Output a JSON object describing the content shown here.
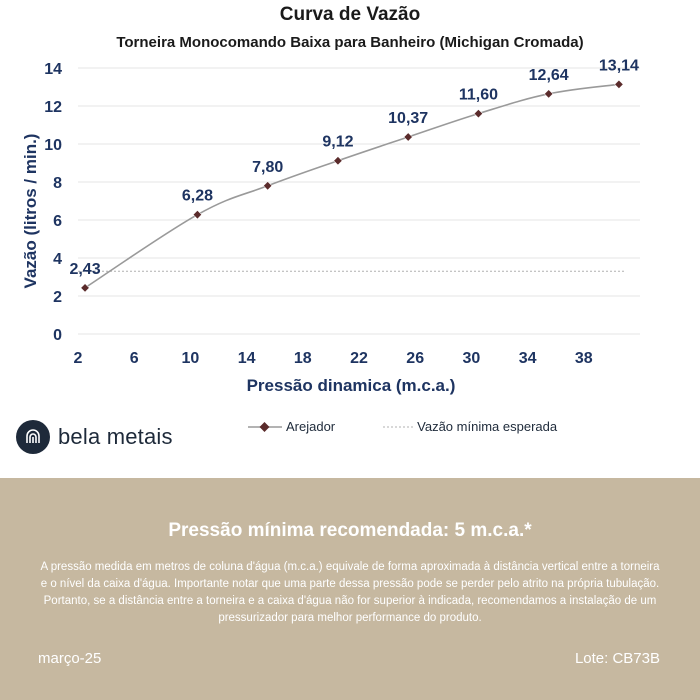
{
  "colors": {
    "navy": "#1e3461",
    "line": "#9a9a9a",
    "marker": "#5a2b2b",
    "ref_line": "#b0b0b0",
    "grid": "#e6e6e6",
    "footer_bg": "#c6b8a0"
  },
  "chart_data": {
    "type": "line",
    "title": "Curva de Vazão",
    "subtitle": "Torneira Monocomando Baixa para Banheiro (Michigan Cromada)",
    "xlabel": "Pressão dinamica (m.c.a.)",
    "ylabel": "Vazão (litros / min.)",
    "xlim": [
      2,
      42
    ],
    "ylim": [
      0,
      14
    ],
    "x_ticks": [
      "2",
      "6",
      "10",
      "14",
      "18",
      "22",
      "26",
      "30",
      "34",
      "38"
    ],
    "y_ticks": [
      "0",
      "2",
      "4",
      "6",
      "8",
      "10",
      "12",
      "14"
    ],
    "grid": {
      "horizontal": true,
      "vertical": false
    },
    "legend_position": "bottom",
    "series": [
      {
        "name": "Arejador",
        "x": [
          2.5,
          10.5,
          15.5,
          20.5,
          25.5,
          30.5,
          35.5,
          40.5
        ],
        "y": [
          2.43,
          6.28,
          7.8,
          9.12,
          10.37,
          11.6,
          12.64,
          13.14
        ],
        "labels": [
          "2,43",
          "6,28",
          "7,80",
          "9,12",
          "10,37",
          "11,60",
          "12,64",
          "13,14"
        ]
      }
    ],
    "reference_lines": [
      {
        "name": "Vazão mínima esperada",
        "y": 3.3,
        "style": "dotted"
      }
    ]
  },
  "brand": {
    "name": "bela metais",
    "logo_icon": "faucet-logo-icon"
  },
  "footer": {
    "headline": "Pressão mínima recomendada: 5 m.c.a.*",
    "note": "A pressão medida em metros de coluna d'água (m.c.a.) equivale de forma aproximada à distância vertical entre a torneira e o nível da caixa d'água. Importante notar que uma parte dessa pressão pode se perder pelo atrito na própria tubulação. Portanto, se a distância entre a torneira e a caixa d'água não for superior à indicada, recomendamos a instalação de um pressurizador para melhor performance do produto.",
    "date": "março-25",
    "lot": "Lote: CB73B"
  }
}
